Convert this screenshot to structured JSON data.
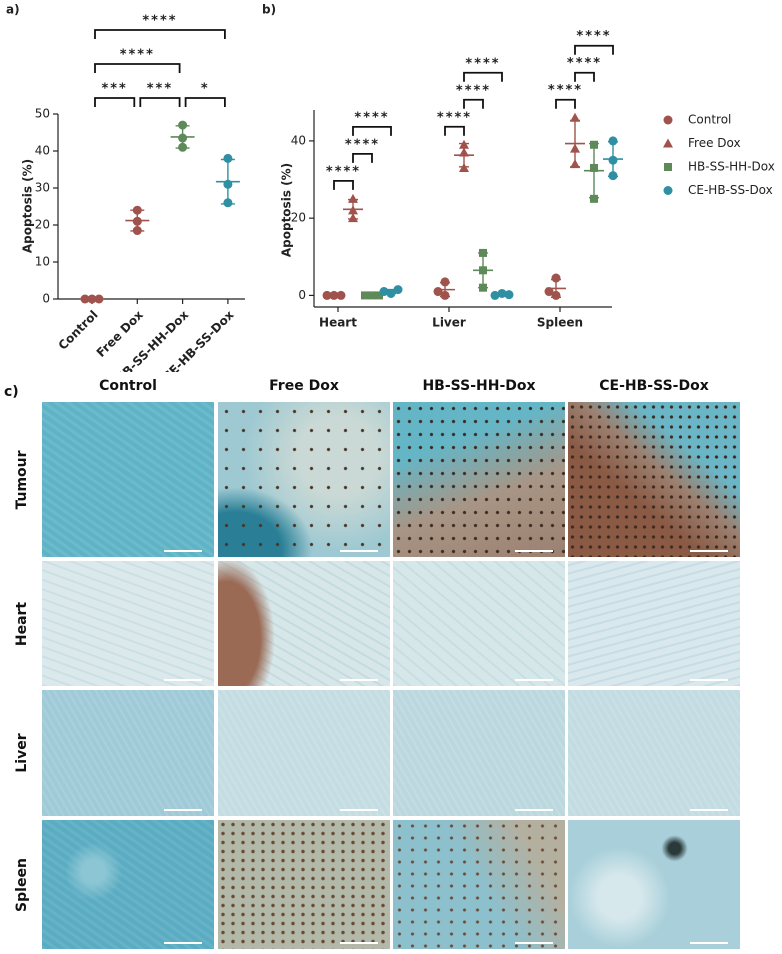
{
  "chart_data": [
    {
      "type": "dot",
      "panel_label": "a)",
      "y_label": "Apoptosis (%)",
      "categories": [
        "Control",
        "Free Dox",
        "HB-SS-HH-Dox",
        "CE-HB-SS-Dox"
      ],
      "colors": [
        "#a0524c",
        "#a0524c",
        "#5e8a5a",
        "#2f8fa3"
      ],
      "points": [
        [
          0,
          0,
          0
        ],
        [
          24,
          21,
          18.5
        ],
        [
          47,
          43.5,
          41
        ],
        [
          38,
          31,
          26
        ]
      ],
      "means": [
        0,
        21.2,
        43.8,
        31.7
      ],
      "sd": [
        0,
        2.8,
        3,
        6
      ],
      "ylim": [
        0,
        50
      ],
      "yticks": [
        0,
        10,
        20,
        30,
        40,
        50
      ],
      "comparisons": [
        {
          "pair": [
            "Control",
            "Free Dox"
          ],
          "label": "***"
        },
        {
          "pair": [
            "Free Dox",
            "HB-SS-HH-Dox"
          ],
          "label": "***"
        },
        {
          "pair": [
            "HB-SS-HH-Dox",
            "CE-HB-SS-Dox"
          ],
          "label": "*"
        },
        {
          "pair": [
            "Control",
            "HB-SS-HH-Dox"
          ],
          "label": "****"
        },
        {
          "pair": [
            "Control",
            "CE-HB-SS-Dox"
          ],
          "label": "****"
        }
      ]
    },
    {
      "type": "grouped_dot",
      "panel_label": "b)",
      "y_label": "Apoptosis (%)",
      "categories": [
        "Heart",
        "Liver",
        "Spleen"
      ],
      "series": [
        {
          "name": "Control",
          "color": "#a0524c",
          "marker": "circle",
          "values": [
            [
              0,
              0,
              0
            ],
            [
              0,
              1,
              3.5
            ],
            [
              0,
              1,
              4.5
            ]
          ],
          "means": [
            0,
            1.5,
            1.8
          ],
          "sd": [
            0,
            1.8,
            2.3
          ]
        },
        {
          "name": "Free Dox",
          "color": "#a0524c",
          "marker": "triangle",
          "values": [
            [
              25,
              22,
              20
            ],
            [
              39,
              37,
              33
            ],
            [
              46,
              38,
              34
            ]
          ],
          "means": [
            22.3,
            36.3,
            39.3
          ],
          "sd": [
            2.5,
            3,
            6
          ]
        },
        {
          "name": "HB-SS-HH-Dox",
          "color": "#5e8a5a",
          "marker": "square",
          "values": [
            [
              0,
              0,
              0
            ],
            [
              11,
              6.5,
              2
            ],
            [
              39,
              33,
              25
            ]
          ],
          "means": [
            0,
            6.5,
            32.3
          ],
          "sd": [
            0,
            4.5,
            7
          ]
        },
        {
          "name": "CE-HB-SS-Dox",
          "color": "#2f8fa3",
          "marker": "circle",
          "values": [
            [
              0.5,
              1,
              1.5
            ],
            [
              0.5,
              0,
              0.2
            ],
            [
              40,
              35,
              31
            ]
          ],
          "means": [
            1,
            0.2,
            35.3
          ],
          "sd": [
            0.5,
            0.3,
            4.5
          ]
        }
      ],
      "ylim": [
        -3,
        48
      ],
      "yticks": [
        0,
        20,
        40
      ],
      "comparisons": [
        {
          "category": "Heart",
          "pair": [
            "Control",
            "Free Dox"
          ],
          "label": "****"
        },
        {
          "category": "Heart",
          "pair": [
            "Free Dox",
            "HB-SS-HH-Dox"
          ],
          "label": "****"
        },
        {
          "category": "Heart",
          "pair": [
            "Free Dox",
            "CE-HB-SS-Dox"
          ],
          "label": "****"
        },
        {
          "category": "Liver",
          "pair": [
            "Control",
            "Free Dox"
          ],
          "label": "****"
        },
        {
          "category": "Liver",
          "pair": [
            "Free Dox",
            "HB-SS-HH-Dox"
          ],
          "label": "****"
        },
        {
          "category": "Liver",
          "pair": [
            "Free Dox",
            "CE-HB-SS-Dox"
          ],
          "label": "****"
        },
        {
          "category": "Spleen",
          "pair": [
            "Control",
            "Free Dox"
          ],
          "label": "****"
        },
        {
          "category": "Spleen",
          "pair": [
            "Free Dox",
            "HB-SS-HH-Dox"
          ],
          "label": "****"
        },
        {
          "category": "Spleen",
          "pair": [
            "Free Dox",
            "CE-HB-SS-Dox"
          ],
          "label": "****"
        }
      ]
    }
  ],
  "figure_c": {
    "panel_label": "c)",
    "columns": [
      "Control",
      "Free Dox",
      "HB-SS-HH-Dox",
      "CE-HB-SS-Dox"
    ],
    "rows": [
      "Tumour",
      "Heart",
      "Liver",
      "Spleen"
    ]
  }
}
